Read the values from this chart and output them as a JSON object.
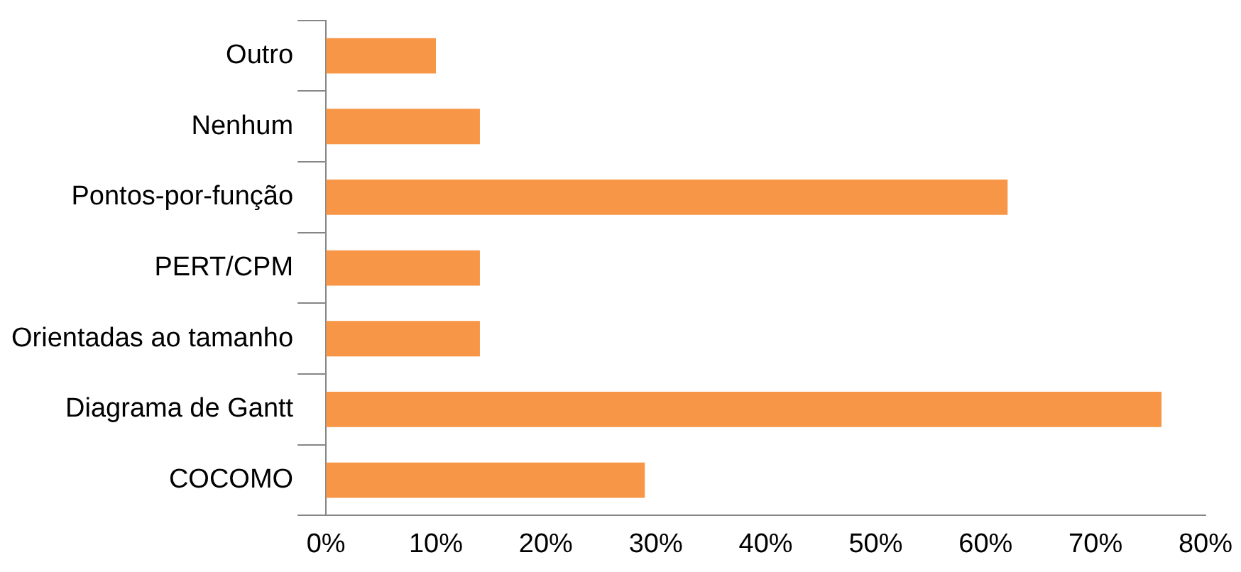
{
  "chart_data": {
    "type": "bar",
    "orientation": "horizontal",
    "categories": [
      "Outro",
      "Nenhum",
      "Pontos-por-função",
      "PERT/CPM",
      "Orientadas ao tamanho",
      "Diagrama de Gantt",
      "COCOMO"
    ],
    "values": [
      10,
      14,
      62,
      14,
      14,
      76,
      29
    ],
    "color": "#f79646",
    "xlim": [
      0,
      80
    ],
    "xticks": [
      {
        "value": 0,
        "label": "0%"
      },
      {
        "value": 10,
        "label": "10%"
      },
      {
        "value": 20,
        "label": "20%"
      },
      {
        "value": 30,
        "label": "30%"
      },
      {
        "value": 40,
        "label": "40%"
      },
      {
        "value": 50,
        "label": "50%"
      },
      {
        "value": 60,
        "label": "60%"
      },
      {
        "value": 70,
        "label": "70%"
      },
      {
        "value": 80,
        "label": "80%"
      }
    ],
    "grid": false,
    "legend": false
  }
}
